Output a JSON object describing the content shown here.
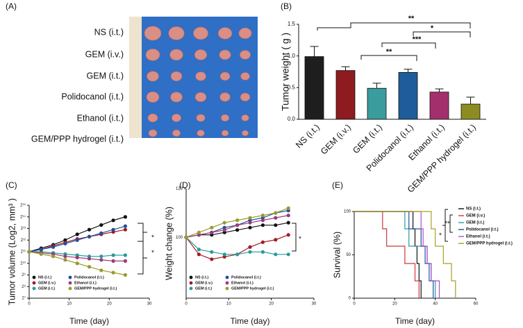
{
  "photo_panel": {
    "panel": "(A)",
    "rows": [
      "NS (i.t.)",
      "GEM (i.v.)",
      "GEM (i.t.)",
      "Polidocanol (i.t.)",
      "Ethanol (i.t.)",
      "GEM/PPP hydrogel (i.t.)"
    ]
  },
  "chart_data": [
    {
      "type": "bar",
      "panel": "(B)",
      "y_label": "Tumor weight ( g )",
      "categories": [
        "NS (i.t.)",
        "GEM (i.v.)",
        "GEM (i.t.)",
        "Polidocanol (i.t.)",
        "Ethanol (i.t.)",
        "GEM/PPP hydrogel (i.t.)"
      ],
      "values": [
        0.99,
        0.77,
        0.49,
        0.74,
        0.43,
        0.24
      ],
      "errors": [
        0.16,
        0.06,
        0.08,
        0.05,
        0.05,
        0.11
      ],
      "colors": [
        "#1e1e1e",
        "#8e1b1f",
        "#3a9c9c",
        "#1f5c9c",
        "#a3306c",
        "#8c8c22"
      ],
      "ylim": [
        0,
        1.5
      ],
      "yticks": [
        {
          "value": 0,
          "label": "0.0"
        },
        0.5,
        {
          "value": 1,
          "label": "1.0"
        },
        1.5
      ],
      "annotations": [
        "**",
        "*",
        "***",
        "**"
      ]
    },
    {
      "type": "line",
      "panel": "(C)",
      "x_label": "Time (day)",
      "y_label": "Tumor volume (Log2, mm³ )",
      "x": [
        0,
        3,
        6,
        9,
        12,
        15,
        18,
        21,
        24
      ],
      "series": [
        {
          "name": "NS (i.t.)",
          "color": "#111111",
          "values": [
            11.0,
            11.3,
            11.6,
            12.0,
            12.5,
            12.9,
            13.3,
            13.7,
            14.0
          ]
        },
        {
          "name": "GEM (i.v.)",
          "color": "#a01c24",
          "values": [
            11.0,
            11.2,
            11.5,
            11.8,
            12.1,
            12.3,
            12.5,
            12.7,
            12.9
          ]
        },
        {
          "name": "GEM (i.t.)",
          "color": "#2a9a9a",
          "values": [
            11.0,
            11.0,
            10.9,
            10.8,
            10.7,
            10.6,
            10.6,
            10.7,
            10.7
          ]
        },
        {
          "name": "Polidocanol (i.t.)",
          "color": "#1f4f9c",
          "values": [
            11.0,
            11.2,
            11.4,
            11.7,
            12.0,
            12.3,
            12.6,
            12.9,
            13.2
          ]
        },
        {
          "name": "Ethanol (i.t.)",
          "color": "#9b3a7a",
          "values": [
            11.0,
            10.9,
            10.8,
            10.6,
            10.5,
            10.4,
            10.3,
            10.2,
            10.2
          ]
        },
        {
          "name": "GEM/PPP hydrogel (i.t.)",
          "color": "#9a9a2a",
          "values": [
            11.0,
            10.8,
            10.6,
            10.3,
            10.0,
            9.7,
            9.4,
            9.2,
            9.0
          ]
        }
      ],
      "xlim": [
        0,
        30
      ],
      "xticks": [
        0,
        10,
        20,
        30
      ],
      "ylim": [
        7,
        15
      ],
      "yticks": [
        {
          "value": 7,
          "label": "2⁷"
        },
        {
          "value": 8,
          "label": "2⁸"
        },
        {
          "value": 9,
          "label": "2⁹"
        },
        {
          "value": 10,
          "label": "2¹⁰"
        },
        {
          "value": 11,
          "label": "2¹¹"
        },
        {
          "value": 12,
          "label": "2¹²"
        },
        {
          "value": 13,
          "label": "2¹³"
        },
        {
          "value": 14,
          "label": "2¹⁴"
        },
        {
          "value": 15,
          "label": "2¹⁵"
        }
      ],
      "legend": "lower left",
      "annotations": [
        "*",
        "*"
      ]
    },
    {
      "type": "line",
      "panel": "(D)",
      "x_label": "Time (day)",
      "y_label": "Weight change (%)",
      "x": [
        0,
        3,
        6,
        9,
        12,
        15,
        18,
        21,
        24
      ],
      "series": [
        {
          "name": "NS (i.t.)",
          "color": "#111111",
          "values": [
            100,
            101,
            101,
            102,
            103,
            104,
            105,
            105,
            106
          ]
        },
        {
          "name": "GEM (i.v.)",
          "color": "#a01c24",
          "values": [
            100,
            93,
            91,
            92,
            93,
            96,
            98,
            99,
            101
          ]
        },
        {
          "name": "GEM (i.t.)",
          "color": "#2a9a9a",
          "values": [
            100,
            95,
            94,
            93,
            93,
            94,
            94,
            93,
            93
          ]
        },
        {
          "name": "Polidocanol (i.t.)",
          "color": "#1f4f9c",
          "values": [
            100,
            101,
            102,
            104,
            105,
            107,
            108,
            110,
            111
          ]
        },
        {
          "name": "Ethanol (i.t.)",
          "color": "#9b3a7a",
          "values": [
            100,
            101,
            102,
            103,
            105,
            106,
            107,
            108,
            109
          ]
        },
        {
          "name": "GEM/PPP hydrogel (i.t.)",
          "color": "#9a9a2a",
          "values": [
            100,
            102,
            104,
            106,
            107,
            108,
            109,
            110,
            112
          ]
        }
      ],
      "xlim": [
        0,
        30
      ],
      "xticks": [
        0,
        10,
        20,
        30
      ],
      "ylim": [
        75,
        120
      ],
      "yticks": [
        100,
        120
      ],
      "legend": "lower left",
      "annotations": [
        "*"
      ]
    },
    {
      "type": "step",
      "panel": "(E)",
      "x_label": "Time (day)",
      "y_label": "Survival (%)",
      "series": [
        {
          "name": "NS (i.t.)",
          "color": "#111111",
          "x": [
            0,
            29,
            30,
            31,
            32,
            33
          ],
          "values": [
            100,
            80,
            60,
            40,
            20,
            0
          ]
        },
        {
          "name": "GEM (i.v.)",
          "color": "#d0343a",
          "x": [
            0,
            14,
            16,
            25,
            30,
            32
          ],
          "values": [
            100,
            80,
            60,
            40,
            20,
            0
          ]
        },
        {
          "name": "GEM (i.t.)",
          "color": "#2a9a9a",
          "x": [
            0,
            25,
            27,
            36,
            38,
            40
          ],
          "values": [
            100,
            80,
            60,
            40,
            20,
            0
          ]
        },
        {
          "name": "Polidocanol (i.t.)",
          "color": "#1f4f9c",
          "x": [
            0,
            27,
            33,
            35,
            37,
            39
          ],
          "values": [
            100,
            80,
            60,
            40,
            20,
            0
          ]
        },
        {
          "name": "Ethanol (i.t.)",
          "color": "#b04ad0",
          "x": [
            0,
            33,
            34,
            36,
            38,
            42
          ],
          "values": [
            100,
            80,
            60,
            40,
            20,
            0
          ]
        },
        {
          "name": "GEM/PPP hydrogel (i.t.)",
          "color": "#a8a020",
          "x": [
            0,
            38,
            40,
            44,
            48,
            50
          ],
          "values": [
            100,
            80,
            60,
            40,
            20,
            0
          ]
        }
      ],
      "xlim": [
        0,
        60
      ],
      "xticks": [
        0,
        20,
        40,
        60
      ],
      "ylim": [
        0,
        100
      ],
      "yticks": [
        0,
        50,
        100
      ],
      "legend": "upper right",
      "annotations": [
        "*",
        "**"
      ]
    }
  ]
}
